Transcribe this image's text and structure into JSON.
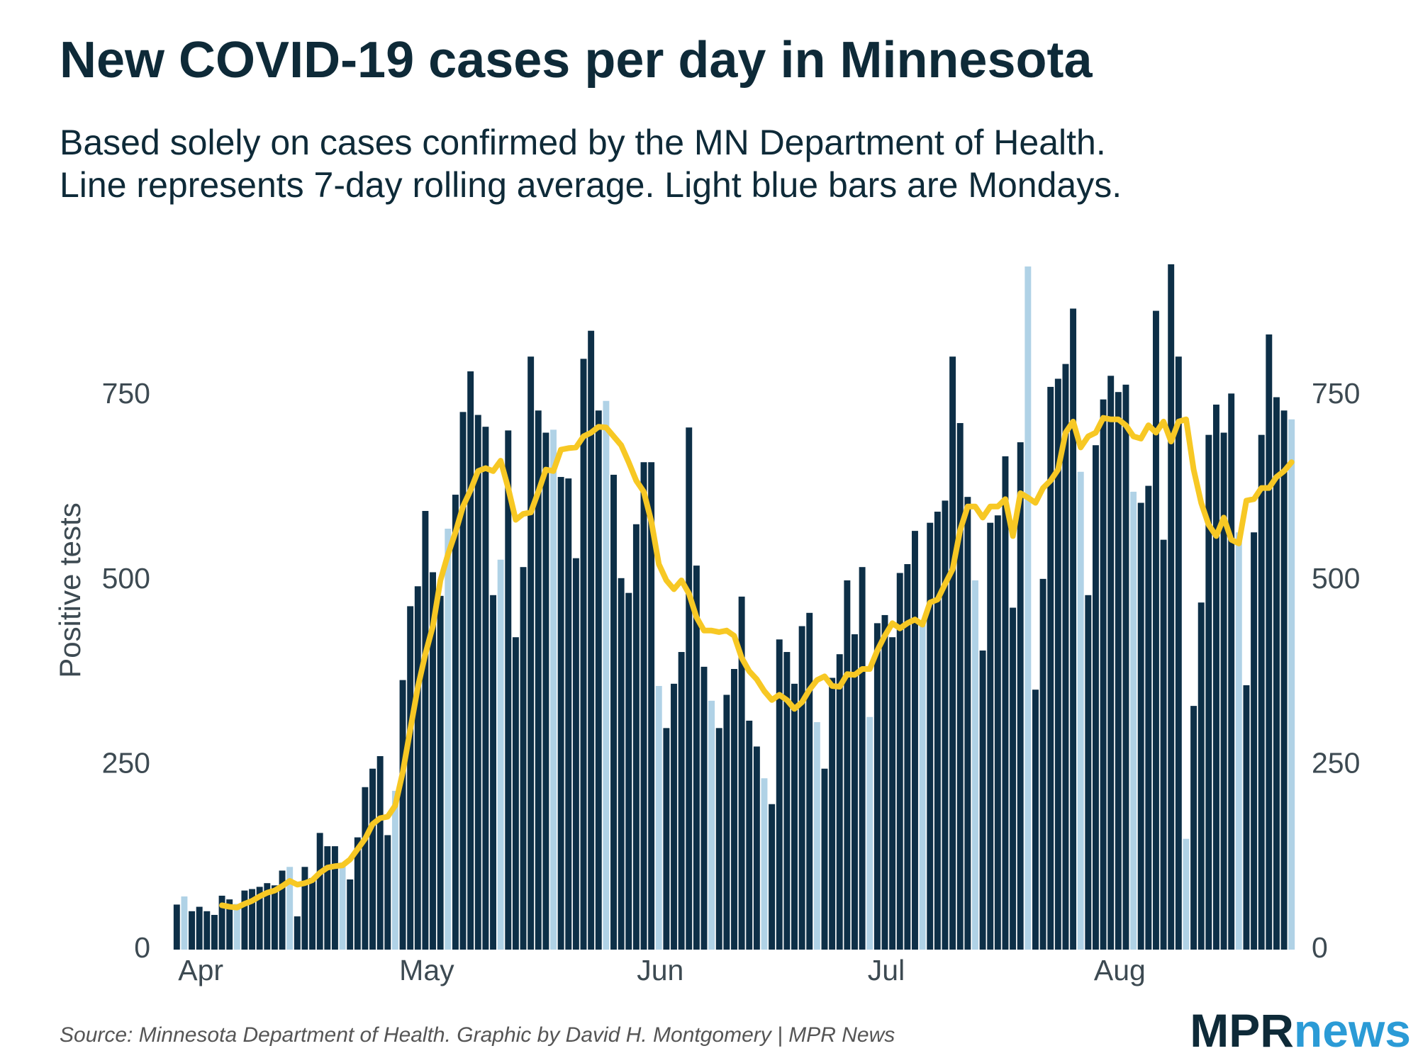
{
  "chart_data": {
    "type": "bar",
    "title": "New COVID-19 cases per day in Minnesota",
    "subtitle": [
      "Based solely on cases confirmed by the MN Department of Health.",
      "Line represents 7-day rolling average. Light blue bars are Mondays."
    ],
    "y_label": "Positive tests",
    "source": "Source: Minnesota Department of Health. Graphic by David H. Montgomery | MPR News",
    "logo": {
      "left": "MPR",
      "right": "news"
    },
    "categories": [
      null,
      null,
      null,
      "Apr",
      null,
      null,
      null,
      null,
      null,
      null,
      null,
      null,
      null,
      null,
      null,
      null,
      null,
      null,
      null,
      null,
      null,
      null,
      null,
      null,
      null,
      null,
      null,
      null,
      null,
      null,
      null,
      null,
      null,
      "May",
      null,
      null,
      null,
      null,
      null,
      null,
      null,
      null,
      null,
      null,
      null,
      null,
      null,
      null,
      null,
      null,
      null,
      null,
      null,
      null,
      null,
      null,
      null,
      null,
      null,
      null,
      null,
      null,
      null,
      null,
      "Jun",
      null,
      null,
      null,
      null,
      null,
      null,
      null,
      null,
      null,
      null,
      null,
      null,
      null,
      null,
      null,
      null,
      null,
      null,
      null,
      null,
      null,
      null,
      null,
      null,
      null,
      null,
      null,
      null,
      null,
      "Jul",
      null,
      null,
      null,
      null,
      null,
      null,
      null,
      null,
      null,
      null,
      null,
      null,
      null,
      null,
      null,
      null,
      null,
      null,
      null,
      null,
      null,
      null,
      null,
      null,
      null,
      null,
      null,
      null,
      null,
      null,
      "Aug",
      null,
      null,
      null,
      null,
      null,
      null,
      null,
      null,
      null,
      null,
      null,
      null,
      null,
      null,
      null,
      null,
      null,
      null,
      null,
      null,
      null,
      null,
      null
    ],
    "series": [
      {
        "color": "#0d2f47",
        "values": [
          61,
          null,
          52,
          58,
          52,
          47,
          73,
          68,
          null,
          80,
          82,
          85,
          90,
          87,
          107,
          null,
          45,
          112,
          97,
          158,
          140,
          140,
          null,
          95,
          152,
          220,
          245,
          262,
          155,
          null,
          365,
          465,
          492,
          594,
          511,
          479,
          null,
          616,
          728,
          783,
          724,
          708,
          480,
          null,
          703,
          423,
          518,
          803,
          730,
          700,
          null,
          640,
          638,
          530,
          800,
          838,
          730,
          null,
          643,
          503,
          483,
          576,
          660,
          660,
          null,
          300,
          360,
          403,
          707,
          520,
          383,
          null,
          300,
          345,
          380,
          478,
          310,
          275,
          null,
          197,
          420,
          403,
          360,
          438,
          456,
          null,
          245,
          368,
          400,
          500,
          427,
          518,
          null,
          442,
          453,
          423,
          510,
          522,
          567,
          null,
          578,
          593,
          608,
          803,
          713,
          613,
          null,
          405,
          578,
          588,
          668,
          463,
          687,
          null,
          352,
          502,
          762,
          773,
          793,
          868,
          null,
          480,
          683,
          745,
          777,
          755,
          765,
          null,
          605,
          628,
          865,
          555,
          928,
          803,
          null,
          330,
          470,
          697,
          738,
          700,
          753,
          null,
          358,
          565,
          697,
          833,
          748,
          730,
          null
        ]
      },
      {
        "color": "#b0d2e6",
        "values": [
          null,
          72,
          null,
          null,
          null,
          null,
          null,
          null,
          62,
          null,
          null,
          null,
          null,
          null,
          null,
          112,
          null,
          null,
          null,
          null,
          null,
          null,
          118,
          null,
          null,
          null,
          null,
          null,
          null,
          215,
          null,
          null,
          null,
          null,
          null,
          null,
          570,
          null,
          null,
          null,
          null,
          null,
          null,
          528,
          null,
          null,
          null,
          null,
          null,
          null,
          704,
          null,
          null,
          null,
          null,
          null,
          null,
          743,
          null,
          null,
          null,
          null,
          null,
          null,
          357,
          null,
          null,
          null,
          null,
          null,
          null,
          337,
          null,
          null,
          null,
          null,
          null,
          null,
          232,
          null,
          null,
          null,
          null,
          null,
          null,
          308,
          null,
          null,
          null,
          null,
          null,
          null,
          315,
          null,
          null,
          null,
          null,
          null,
          null,
          440,
          null,
          null,
          null,
          null,
          null,
          null,
          500,
          null,
          null,
          null,
          null,
          null,
          null,
          925,
          null,
          null,
          null,
          null,
          null,
          null,
          647,
          null,
          null,
          null,
          null,
          null,
          null,
          620,
          null,
          null,
          null,
          null,
          null,
          null,
          150,
          null,
          null,
          null,
          null,
          null,
          null,
          565,
          null,
          null,
          null,
          null,
          null,
          null,
          718
        ]
      },
      {
        "type": "line",
        "color": "#f7c824",
        "values": [
          null,
          null,
          null,
          null,
          null,
          null,
          60,
          58,
          57,
          62,
          66,
          72,
          77,
          80,
          86,
          93,
          88,
          90,
          94,
          104,
          111,
          113,
          114,
          122,
          136,
          150,
          170,
          178,
          180,
          195,
          240,
          298,
          355,
          400,
          438,
          500,
          535,
          565,
          600,
          622,
          648,
          652,
          648,
          662,
          625,
          582,
          590,
          592,
          620,
          650,
          648,
          677,
          679,
          680,
          695,
          700,
          708,
          707,
          695,
          683,
          660,
          635,
          620,
          580,
          522,
          500,
          488,
          500,
          482,
          450,
          432,
          432,
          430,
          432,
          425,
          395,
          377,
          366,
          350,
          338,
          345,
          338,
          326,
          335,
          352,
          365,
          370,
          357,
          356,
          373,
          372,
          380,
          380,
          405,
          425,
          442,
          435,
          442,
          447,
          440,
          470,
          474,
          495,
          515,
          568,
          600,
          600,
          585,
          600,
          600,
          610,
          560,
          618,
          612,
          605,
          625,
          635,
          650,
          700,
          715,
          680,
          695,
          700,
          720,
          718,
          718,
          710,
          695,
          692,
          710,
          700,
          715,
          688,
          715,
          718,
          650,
          605,
          575,
          560,
          585,
          555,
          550,
          608,
          610,
          625,
          625,
          640,
          648,
          660
        ]
      }
    ],
    "ylim": [
      0,
      950
    ],
    "yticks": [
      0,
      250,
      500,
      750
    ],
    "y2lim": [
      0,
      950
    ],
    "y2ticks": [
      0,
      250,
      500,
      750
    ],
    "grid": false
  }
}
